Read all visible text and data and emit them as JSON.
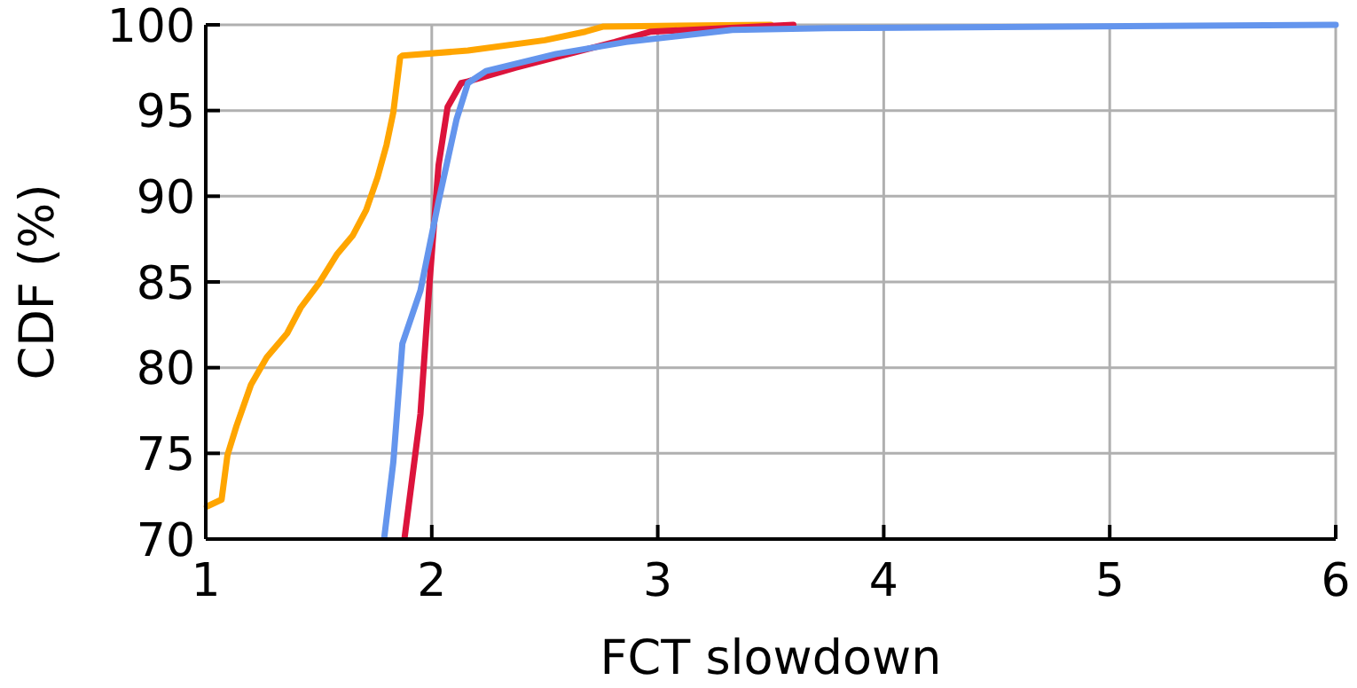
{
  "chart_data": {
    "type": "line",
    "xlabel": "FCT slowdown",
    "ylabel": "CDF (%)",
    "xlim": [
      1,
      6
    ],
    "xticks": [
      1,
      2,
      3,
      4,
      5,
      6
    ],
    "ylim": [
      70,
      100
    ],
    "yticks": [
      70,
      75,
      80,
      85,
      90,
      95,
      100
    ],
    "grid": true,
    "line_style": "solid",
    "marker": "none",
    "series": [
      {
        "color": "#ffa500",
        "x": [
          1.005,
          1.07,
          1.096,
          1.136,
          1.2,
          1.27,
          1.36,
          1.42,
          1.5,
          1.58,
          1.65,
          1.71,
          1.76,
          1.8,
          1.83,
          1.86,
          1.87,
          2.16,
          2.5,
          2.68,
          2.76,
          3.5
        ],
        "values": [
          71.9,
          72.3,
          74.9,
          76.6,
          79.0,
          80.6,
          82.0,
          83.5,
          84.9,
          86.6,
          87.7,
          89.2,
          91.1,
          93.0,
          94.9,
          98.1,
          98.2,
          98.5,
          99.1,
          99.6,
          99.9,
          100
        ]
      },
      {
        "color": "#dc143c",
        "x": [
          1.88,
          1.95,
          1.99,
          2.03,
          2.07,
          2.13,
          2.16,
          2.37,
          2.81,
          2.97,
          3.6
        ],
        "values": [
          70.1,
          77.3,
          84.9,
          91.8,
          95.2,
          96.6,
          96.7,
          97.5,
          99.0,
          99.6,
          100
        ]
      },
      {
        "color": "#6495ed",
        "x": [
          1.79,
          1.83,
          1.87,
          1.95,
          2.03,
          2.11,
          2.16,
          2.24,
          2.55,
          2.86,
          3.33,
          3.75,
          6
        ],
        "values": [
          70.1,
          74.5,
          81.4,
          84.5,
          89.7,
          94.5,
          96.6,
          97.3,
          98.3,
          99.0,
          99.7,
          99.8,
          100
        ]
      }
    ]
  }
}
